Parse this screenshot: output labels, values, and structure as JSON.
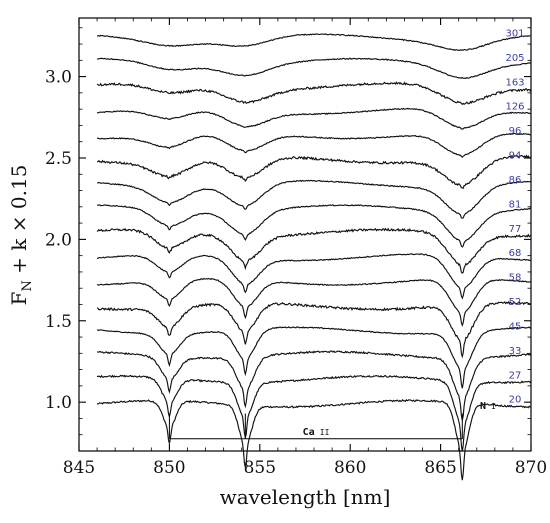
{
  "chart_data": {
    "type": "line",
    "title": "",
    "xlabel": "wavelength [nm]",
    "ylabel_parts": {
      "f": "F",
      "sub": "N",
      "rest": " + k × 0.15"
    },
    "xlim": [
      845,
      870
    ],
    "ylim": [
      0.7,
      3.36
    ],
    "x_ticks": [
      845,
      850,
      855,
      860,
      865,
      870
    ],
    "x_tick_labels": [
      "845",
      "850",
      "855",
      "860",
      "865",
      "870"
    ],
    "y_ticks": [
      1.0,
      1.5,
      2.0,
      2.5,
      3.0
    ],
    "y_tick_labels": [
      "1.0",
      "1.5",
      "2.0",
      "2.5",
      "3.0"
    ],
    "grid": false,
    "offset_step": 0.15,
    "spectrum_wavelength_range": [
      846,
      870
    ],
    "series_labels": [
      "20",
      "27",
      "33",
      "45",
      "52",
      "58",
      "68",
      "77",
      "81",
      "86",
      "94",
      "96",
      "126",
      "163",
      "205",
      "301"
    ],
    "series_baselines": [
      0.99,
      1.14,
      1.29,
      1.44,
      1.59,
      1.74,
      1.89,
      2.04,
      2.19,
      2.34,
      2.49,
      2.64,
      2.79,
      2.94,
      3.09,
      3.24
    ],
    "series_line_depth": [
      0.3,
      0.27,
      0.25,
      0.23,
      0.22,
      0.21,
      0.2,
      0.19,
      0.18,
      0.17,
      0.16,
      0.14,
      0.12,
      0.1,
      0.08,
      0.06
    ],
    "lines": [
      {
        "center": 850.0,
        "tag": "Ca II"
      },
      {
        "center": 854.2,
        "tag": "Ca II"
      },
      {
        "center": 866.2,
        "tag": "Ca II"
      }
    ],
    "annotations": {
      "ca_label_bold": "Ca",
      "ca_label_ion": "II",
      "n_label_bold": "N",
      "n_label_ion": "I"
    },
    "colors": {
      "line": "#111111",
      "series_label": "#3a3fa8"
    }
  }
}
